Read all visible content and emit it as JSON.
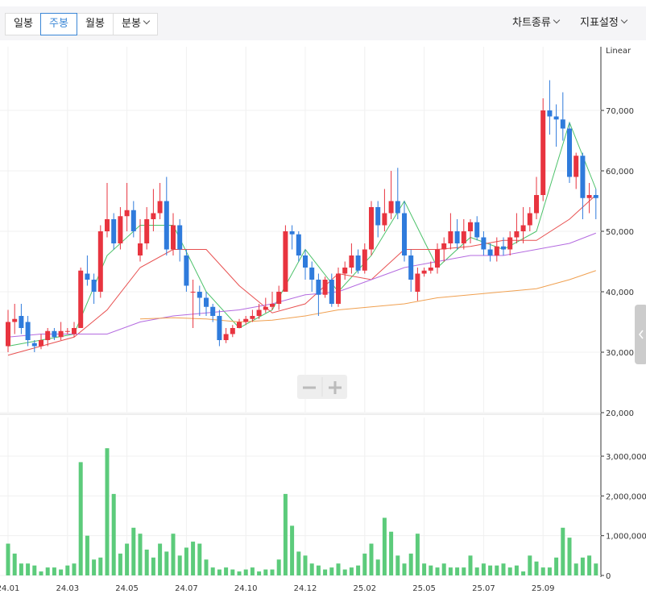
{
  "toolbar": {
    "periods": [
      "일봉",
      "주봉",
      "월봉",
      "분봉"
    ],
    "selected": 1,
    "menus": [
      "차트종류",
      "지표설정"
    ]
  },
  "chart_data": {
    "type": "candlestick",
    "scale_label": "Linear",
    "categories": [
      "24.01",
      null,
      null,
      null,
      null,
      null,
      null,
      null,
      null,
      "24.03",
      null,
      null,
      null,
      null,
      null,
      null,
      null,
      null,
      "24.05",
      null,
      null,
      null,
      null,
      null,
      null,
      null,
      null,
      "24.07",
      null,
      null,
      null,
      null,
      null,
      null,
      null,
      null,
      "24.10",
      null,
      null,
      null,
      null,
      null,
      null,
      null,
      null,
      "24.12",
      null,
      null,
      null,
      null,
      null,
      null,
      null,
      null,
      "25.02",
      null,
      null,
      null,
      null,
      null,
      null,
      null,
      null,
      "25.05",
      null,
      null,
      null,
      null,
      null,
      null,
      null,
      null,
      "25.07",
      null,
      null,
      null,
      null,
      null,
      null,
      null,
      null,
      "25.09",
      null,
      null,
      null,
      null,
      null,
      null,
      null,
      null
    ],
    "up_color": "#e8343f",
    "down_color": "#2f7bdc",
    "volume_color": "#5ccb7b",
    "ohlc": [
      [
        31000,
        37000,
        30000,
        35000
      ],
      [
        35000,
        38000,
        33000,
        35500
      ],
      [
        36000,
        38000,
        33000,
        34000
      ],
      [
        35000,
        36000,
        31000,
        32000
      ],
      [
        31500,
        32000,
        30000,
        31000
      ],
      [
        31000,
        33000,
        30500,
        32000
      ],
      [
        32000,
        34000,
        31000,
        33500
      ],
      [
        33500,
        34000,
        32000,
        32500
      ],
      [
        32500,
        35000,
        32000,
        33500
      ],
      [
        33500,
        34000,
        33000,
        33500
      ],
      [
        33000,
        35000,
        32500,
        34000
      ],
      [
        34000,
        44000,
        34000,
        43500
      ],
      [
        43000,
        46000,
        41000,
        42000
      ],
      [
        42000,
        43000,
        38000,
        40000
      ],
      [
        40000,
        51000,
        39000,
        50000
      ],
      [
        50000,
        58000,
        49000,
        52000
      ],
      [
        52000,
        53000,
        47000,
        48000
      ],
      [
        48000,
        54000,
        47000,
        52500
      ],
      [
        52500,
        58000,
        50000,
        53500
      ],
      [
        53500,
        55000,
        49000,
        50000
      ],
      [
        46000,
        52000,
        45000,
        48000
      ],
      [
        48000,
        54000,
        47000,
        52000
      ],
      [
        52000,
        57000,
        50000,
        53000
      ],
      [
        53000,
        58000,
        52000,
        55000
      ],
      [
        55000,
        59000,
        46000,
        47000
      ],
      [
        47000,
        53000,
        46000,
        51000
      ],
      [
        51000,
        52000,
        45000,
        47000
      ],
      [
        46000,
        47000,
        40000,
        41000
      ],
      [
        40000,
        42000,
        34000,
        40000
      ],
      [
        40000,
        41000,
        36000,
        39000
      ],
      [
        39000,
        40000,
        36000,
        37500
      ],
      [
        37500,
        38000,
        35000,
        36000
      ],
      [
        36000,
        37000,
        31000,
        32000
      ],
      [
        32000,
        34000,
        31500,
        33000
      ],
      [
        33000,
        34500,
        32500,
        34000
      ],
      [
        34000,
        35500,
        34000,
        35000
      ],
      [
        35000,
        36000,
        34500,
        35500
      ],
      [
        35500,
        37000,
        35000,
        36000
      ],
      [
        36000,
        38000,
        35500,
        37000
      ],
      [
        37000,
        39000,
        36500,
        37500
      ],
      [
        37500,
        40000,
        37000,
        38000
      ],
      [
        38000,
        41000,
        37000,
        40000
      ],
      [
        40000,
        51000,
        40000,
        50000
      ],
      [
        50000,
        51000,
        47000,
        49500
      ],
      [
        49500,
        50000,
        45000,
        46000
      ],
      [
        46000,
        47000,
        42000,
        44000
      ],
      [
        44000,
        45000,
        40000,
        42000
      ],
      [
        42000,
        43000,
        36000,
        39500
      ],
      [
        39500,
        42500,
        39000,
        42000
      ],
      [
        42000,
        43000,
        37500,
        38000
      ],
      [
        38000,
        44000,
        37500,
        43000
      ],
      [
        43000,
        45000,
        42000,
        44000
      ],
      [
        44000,
        48000,
        43000,
        46000
      ],
      [
        46000,
        47000,
        43000,
        43500
      ],
      [
        43500,
        48000,
        43000,
        47000
      ],
      [
        47000,
        55000,
        46000,
        54000
      ],
      [
        54000,
        55000,
        49000,
        51000
      ],
      [
        51000,
        57000,
        50000,
        53000
      ],
      [
        53000,
        60000,
        52000,
        55000
      ],
      [
        55000,
        60500,
        52000,
        53000
      ],
      [
        53000,
        55000,
        45000,
        46000
      ],
      [
        46000,
        47000,
        40000,
        42000
      ],
      [
        40000,
        44000,
        38500,
        43000
      ],
      [
        43000,
        44000,
        42500,
        43500
      ],
      [
        43500,
        45000,
        43000,
        44000
      ],
      [
        44000,
        48000,
        43000,
        47000
      ],
      [
        47000,
        49000,
        45000,
        48000
      ],
      [
        48000,
        53000,
        47000,
        50000
      ],
      [
        50000,
        52000,
        47000,
        48000
      ],
      [
        48000,
        52000,
        47000,
        50000
      ],
      [
        50000,
        52000,
        48000,
        51500
      ],
      [
        51500,
        52500,
        48500,
        49000
      ],
      [
        49000,
        50000,
        46000,
        47000
      ],
      [
        47000,
        48000,
        45000,
        46000
      ],
      [
        46000,
        49000,
        45000,
        47500
      ],
      [
        47500,
        49000,
        46000,
        47000
      ],
      [
        47000,
        50000,
        46000,
        49000
      ],
      [
        49000,
        53000,
        48000,
        50000
      ],
      [
        50000,
        54000,
        48000,
        51000
      ],
      [
        51000,
        54000,
        50000,
        53000
      ],
      [
        53000,
        59000,
        52000,
        56000
      ],
      [
        56000,
        72000,
        55000,
        70000
      ],
      [
        70000,
        75000,
        66000,
        69000
      ],
      [
        69000,
        71000,
        64000,
        68500
      ],
      [
        68500,
        73000,
        65000,
        67000
      ],
      [
        67000,
        68000,
        58000,
        59000
      ],
      [
        59000,
        63000,
        57000,
        62500
      ],
      [
        62500,
        63000,
        52000,
        55500
      ],
      [
        55500,
        58000,
        53000,
        56000
      ],
      [
        56000,
        57000,
        52000,
        55500
      ]
    ],
    "volume": [
      800000,
      550000,
      300000,
      300000,
      250000,
      100000,
      200000,
      200000,
      150000,
      250000,
      300000,
      2850000,
      1000000,
      400000,
      450000,
      3200000,
      2050000,
      550000,
      800000,
      1200000,
      1050000,
      650000,
      450000,
      800000,
      600000,
      1050000,
      500000,
      700000,
      850000,
      800000,
      400000,
      200000,
      150000,
      200000,
      150000,
      100000,
      150000,
      200000,
      100000,
      150000,
      150000,
      400000,
      2050000,
      1250000,
      600000,
      500000,
      300000,
      250000,
      150000,
      200000,
      300000,
      150000,
      200000,
      250000,
      550000,
      800000,
      400000,
      1450000,
      1100000,
      500000,
      300000,
      550000,
      1050000,
      300000,
      250000,
      200000,
      300000,
      200000,
      200000,
      200000,
      500000,
      200000,
      300000,
      250000,
      250000,
      300000,
      200000,
      250000,
      100000,
      500000,
      350000,
      200000,
      200000,
      450000,
      1200000,
      950000,
      300000,
      450000,
      500000,
      300000
    ],
    "ma_x": [
      0,
      5,
      10,
      15,
      20,
      25,
      30,
      35,
      40,
      45,
      50,
      55,
      60,
      65,
      70,
      75,
      80,
      85,
      89
    ],
    "ma": [
      {
        "color": "#4cc26a",
        "values": [
          31000,
          32000,
          33000,
          46000,
          51000,
          51000,
          40000,
          34000,
          37000,
          47000,
          40000,
          46000,
          55000,
          44000,
          49000,
          47000,
          50000,
          68000,
          57000
        ]
      },
      {
        "color": "#e85050",
        "values": [
          29500,
          31000,
          32500,
          37000,
          44000,
          47000,
          47000,
          41000,
          36500,
          38000,
          43000,
          42000,
          47000,
          47000,
          47500,
          48500,
          48500,
          52000,
          56000
        ]
      },
      {
        "color": "#b46be0",
        "values": [
          32500,
          33000,
          33000,
          33000,
          35000,
          36000,
          36500,
          37000,
          38000,
          39500,
          40000,
          42000,
          44000,
          45000,
          46000,
          46000,
          47000,
          48000,
          49700
        ]
      },
      {
        "color": "#f0a050",
        "values": [
          null,
          null,
          null,
          null,
          35500,
          35700,
          35500,
          35000,
          35300,
          36000,
          37000,
          37500,
          38000,
          39000,
          39500,
          40000,
          40500,
          42000,
          43500
        ]
      }
    ],
    "ylim": [
      20000,
      80000
    ],
    "yticks": [
      {
        "value": 20000,
        "label": "20,000"
      },
      {
        "value": 30000,
        "label": "30,000"
      },
      {
        "value": 40000,
        "label": "40,000"
      },
      {
        "value": 50000,
        "label": "50,000"
      },
      {
        "value": 60000,
        "label": "60,000"
      },
      {
        "value": 70000,
        "label": "70,000"
      }
    ],
    "y2lim": [
      0,
      4000000
    ],
    "y2ticks": [
      0,
      {
        "value": 1000000,
        "label": "1,000,000"
      },
      {
        "value": 2000000,
        "label": "2,000,000"
      },
      {
        "value": 3000000,
        "label": "3,000,000"
      }
    ],
    "grid": true
  }
}
